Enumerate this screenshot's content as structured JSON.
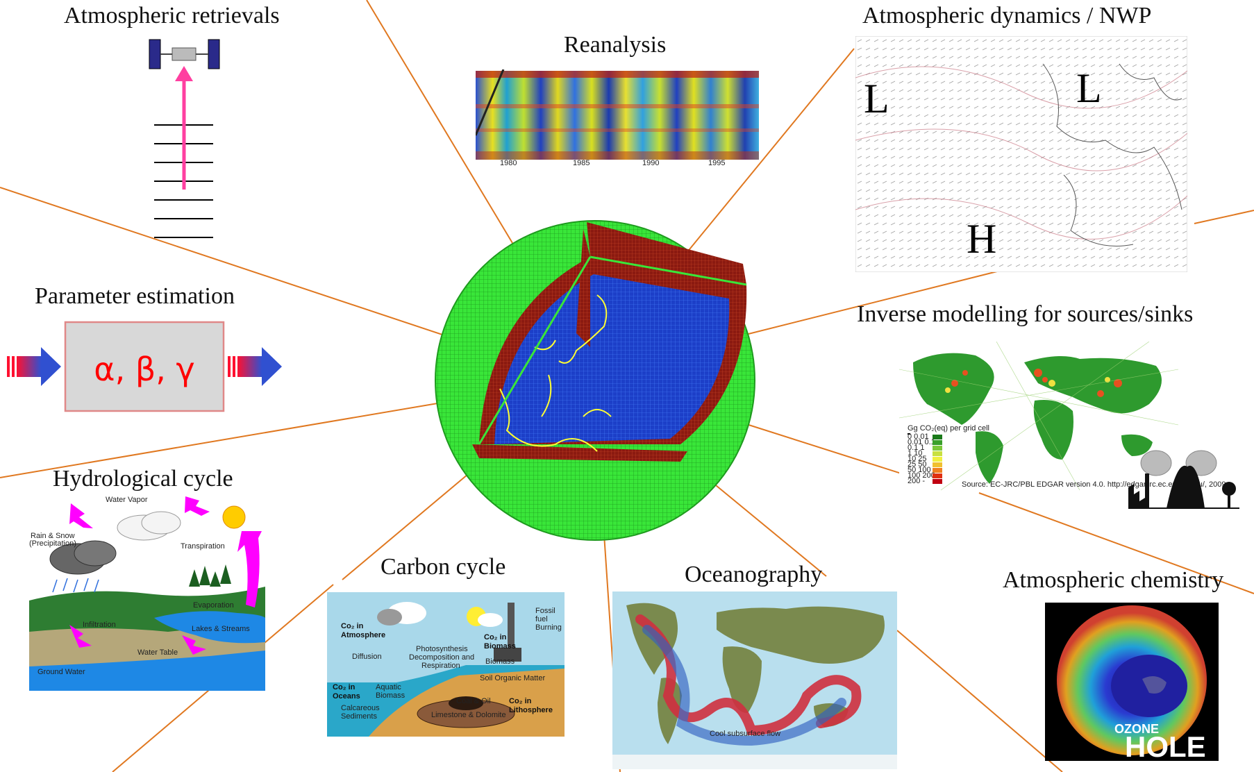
{
  "hub": {
    "label": "",
    "icon": "sliced-globe-grid"
  },
  "topics": {
    "atmospheric_retrievals": "Atmospheric retrievals",
    "reanalysis": "Reanalysis",
    "atmospheric_dynamics": "Atmospheric dynamics / NWP",
    "parameter_estimation": "Parameter estimation",
    "inverse_modelling": "Inverse modelling for sources/sinks",
    "hydrological_cycle": "Hydrological cycle",
    "carbon_cycle": "Carbon cycle",
    "oceanography": "Oceanography",
    "atmospheric_chemistry": "Atmospheric chemistry"
  },
  "reanalysis_years": [
    "1980",
    "1985",
    "1990",
    "1995"
  ],
  "nwp_pressure_labels": [
    "L",
    "L",
    "H"
  ],
  "parameter_text": "α, β, γ",
  "emissions": {
    "legend_title": "Gg CO₂(eq) per grid cell",
    "legend_rows": [
      "0 0.01",
      "0.01 0.1",
      "0.1 1",
      "1 10",
      "10 25",
      "25 50",
      "50 100",
      "100 200",
      "200 -"
    ],
    "legend_colors": [
      "#1a7a1a",
      "#3aa02a",
      "#7cc83a",
      "#c8e040",
      "#f0f040",
      "#f0c030",
      "#f08020",
      "#e03010",
      "#c00010",
      "#2050c0"
    ],
    "source": "Source: EC-JRC/PBL EDGAR version 4.0. http://edgar.jrc.ec.europa.eu/, 2009"
  },
  "hydro_labels": {
    "vapor": "Water Vapor",
    "rain": "Rain & Snow",
    "precip": "(Precipitation)",
    "transpiration": "Transpiration",
    "evaporation": "Evaporation",
    "infiltration": "Infiltration",
    "lakes": "Lakes & Streams",
    "table": "Water Table",
    "ground": "Ground Water"
  },
  "carbon_labels": {
    "co2_atm_1": "Co₂ in",
    "co2_atm_2": "Atmosphere",
    "diffusion": "Diffusion",
    "photo_1": "Photosynthesis",
    "photo_2": "Decomposition and",
    "photo_3": "Respiration",
    "co2_bio_1": "Co₂ in",
    "co2_bio_2": "Biomass",
    "biomass": "Biomass",
    "fossil_1": "Fossil",
    "fossil_2": "fuel",
    "fossil_3": "Burning",
    "co2_oc_1": "Co₂ in",
    "co2_oc_2": "Oceans",
    "aquatic_1": "Aquatic",
    "aquatic_2": "Biomass",
    "soil": "Soil Organic Matter",
    "coal": "Coal & Oil",
    "lime": "Limestone & Dolomite",
    "calc_1": "Calcareous",
    "calc_2": "Sediments",
    "co2_lith_1": "Co₂ in",
    "co2_lith_2": "Lithosphere"
  },
  "ocean_labels": {
    "cool": "Cool subsurface flow"
  },
  "ozone_labels": {
    "line1": "OZONE",
    "line2": "HOLE"
  },
  "colors": {
    "connector": "#e07820",
    "globe_mesh": "#39e639",
    "globe_core": "#1c3fc8",
    "layer_red": "#8b1a10"
  }
}
